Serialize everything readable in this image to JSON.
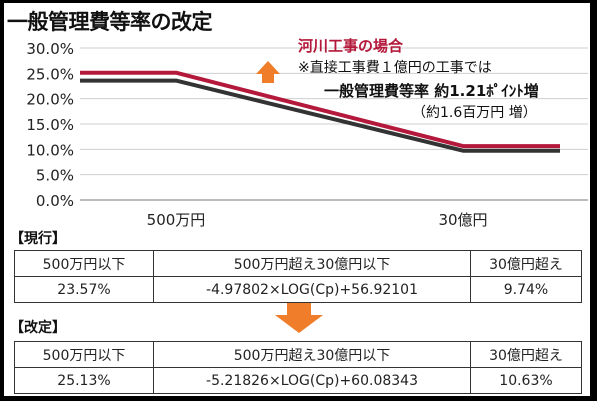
{
  "title": "一般管理費等率の改定",
  "chart_data": {
    "type": "line",
    "y_ticks": [
      "30.0%",
      "25.0%",
      "20.0%",
      "15.0%",
      "10.0%",
      "5.0%",
      "0.0%"
    ],
    "y_values": [
      30,
      25,
      20,
      15,
      10,
      5,
      0
    ],
    "ylim": [
      0,
      30
    ],
    "x_labels": [
      "500万円",
      "30億円"
    ],
    "grid": true,
    "series": [
      {
        "key": "revised",
        "color": "#b4183a",
        "points": [
          [
            0,
            25.13
          ],
          [
            1,
            25.13
          ],
          [
            2,
            10.63
          ],
          [
            3,
            10.63
          ]
        ]
      },
      {
        "key": "current",
        "color": "#333333",
        "points": [
          [
            0,
            23.57
          ],
          [
            1,
            23.57
          ],
          [
            2,
            9.74
          ],
          [
            3,
            9.74
          ]
        ]
      }
    ]
  },
  "note": {
    "line1": "河川工事の場合",
    "line2": "※直接工事費１億円の工事では",
    "line3a": "一般管理費等率",
    "line3b": "約1.21ﾎﾟｲﾝﾄ増",
    "line4": "（約1.6百万円 増）",
    "arrow_color": "#f07d2a"
  },
  "current": {
    "label": "【現行】",
    "headers": [
      "500万円以下",
      "500万円超え30億円以下",
      "30億円超え"
    ],
    "values": [
      "23.57%",
      "-4.97802×LOG(Cp)+56.92101",
      "9.74%"
    ]
  },
  "revised": {
    "label": "【改定】",
    "headers": [
      "500万円以下",
      "500万円超え30億円以下",
      "30億円超え"
    ],
    "values": [
      "25.13%",
      "-5.21826×LOG(Cp)+60.08343",
      "10.63%"
    ]
  },
  "down_arrow_color": "#f07d2a"
}
